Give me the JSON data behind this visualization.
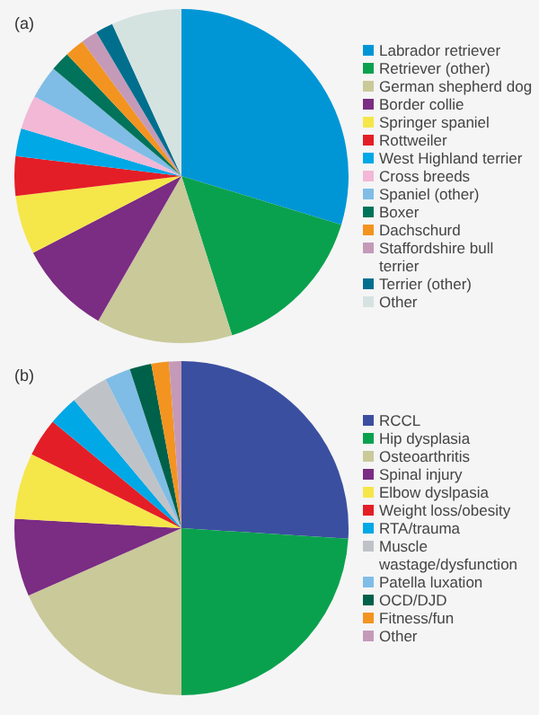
{
  "chart_data": [
    {
      "type": "pie",
      "title": "(a)",
      "legend": "right",
      "categories": [
        "Labrador retriever",
        "Retriever (other)",
        "German shepherd dog",
        "Border collie",
        "Springer spaniel",
        "Rottweiler",
        "West Highland terrier",
        "Cross breeds",
        "Spaniel (other)",
        "Boxer",
        "Dachschurd",
        "Staffordshire bull terrier",
        "Terrier (other)",
        "Other"
      ],
      "values": [
        29.7,
        15.4,
        13.2,
        9.1,
        5.7,
        3.8,
        2.7,
        3.3,
        3.2,
        1.9,
        1.9,
        1.6,
        1.7,
        6.8
      ],
      "colors": [
        "#0096d6",
        "#0aa14e",
        "#c9c99a",
        "#7b2c83",
        "#f5e64a",
        "#e41e26",
        "#00a8e6",
        "#f2b8d6",
        "#7fbde6",
        "#00735a",
        "#f39420",
        "#c49ab8",
        "#006f8e",
        "#d5e3e0"
      ]
    },
    {
      "type": "pie",
      "title": "(b)",
      "legend": "right",
      "categories": [
        "RCCL",
        "Hip dysplasia",
        "Osteoarthritis",
        "Spinal injury",
        "Elbow dyslpasia",
        "Weight loss/obesity",
        "RTA/trauma",
        "Muscle wastage/dysfunction",
        "Patella luxation",
        "OCD/DJD",
        "Fitness/fun",
        "Other"
      ],
      "values": [
        26.0,
        24.0,
        18.4,
        7.5,
        6.4,
        3.7,
        2.9,
        3.6,
        2.5,
        2.1,
        1.7,
        1.2
      ],
      "colors": [
        "#3b4fa0",
        "#0aa14e",
        "#c9c99a",
        "#7b2c83",
        "#f5e64a",
        "#e41e26",
        "#00a8e6",
        "#bfc3c8",
        "#7fbde6",
        "#00614a",
        "#f39420",
        "#c49ab8"
      ]
    }
  ]
}
